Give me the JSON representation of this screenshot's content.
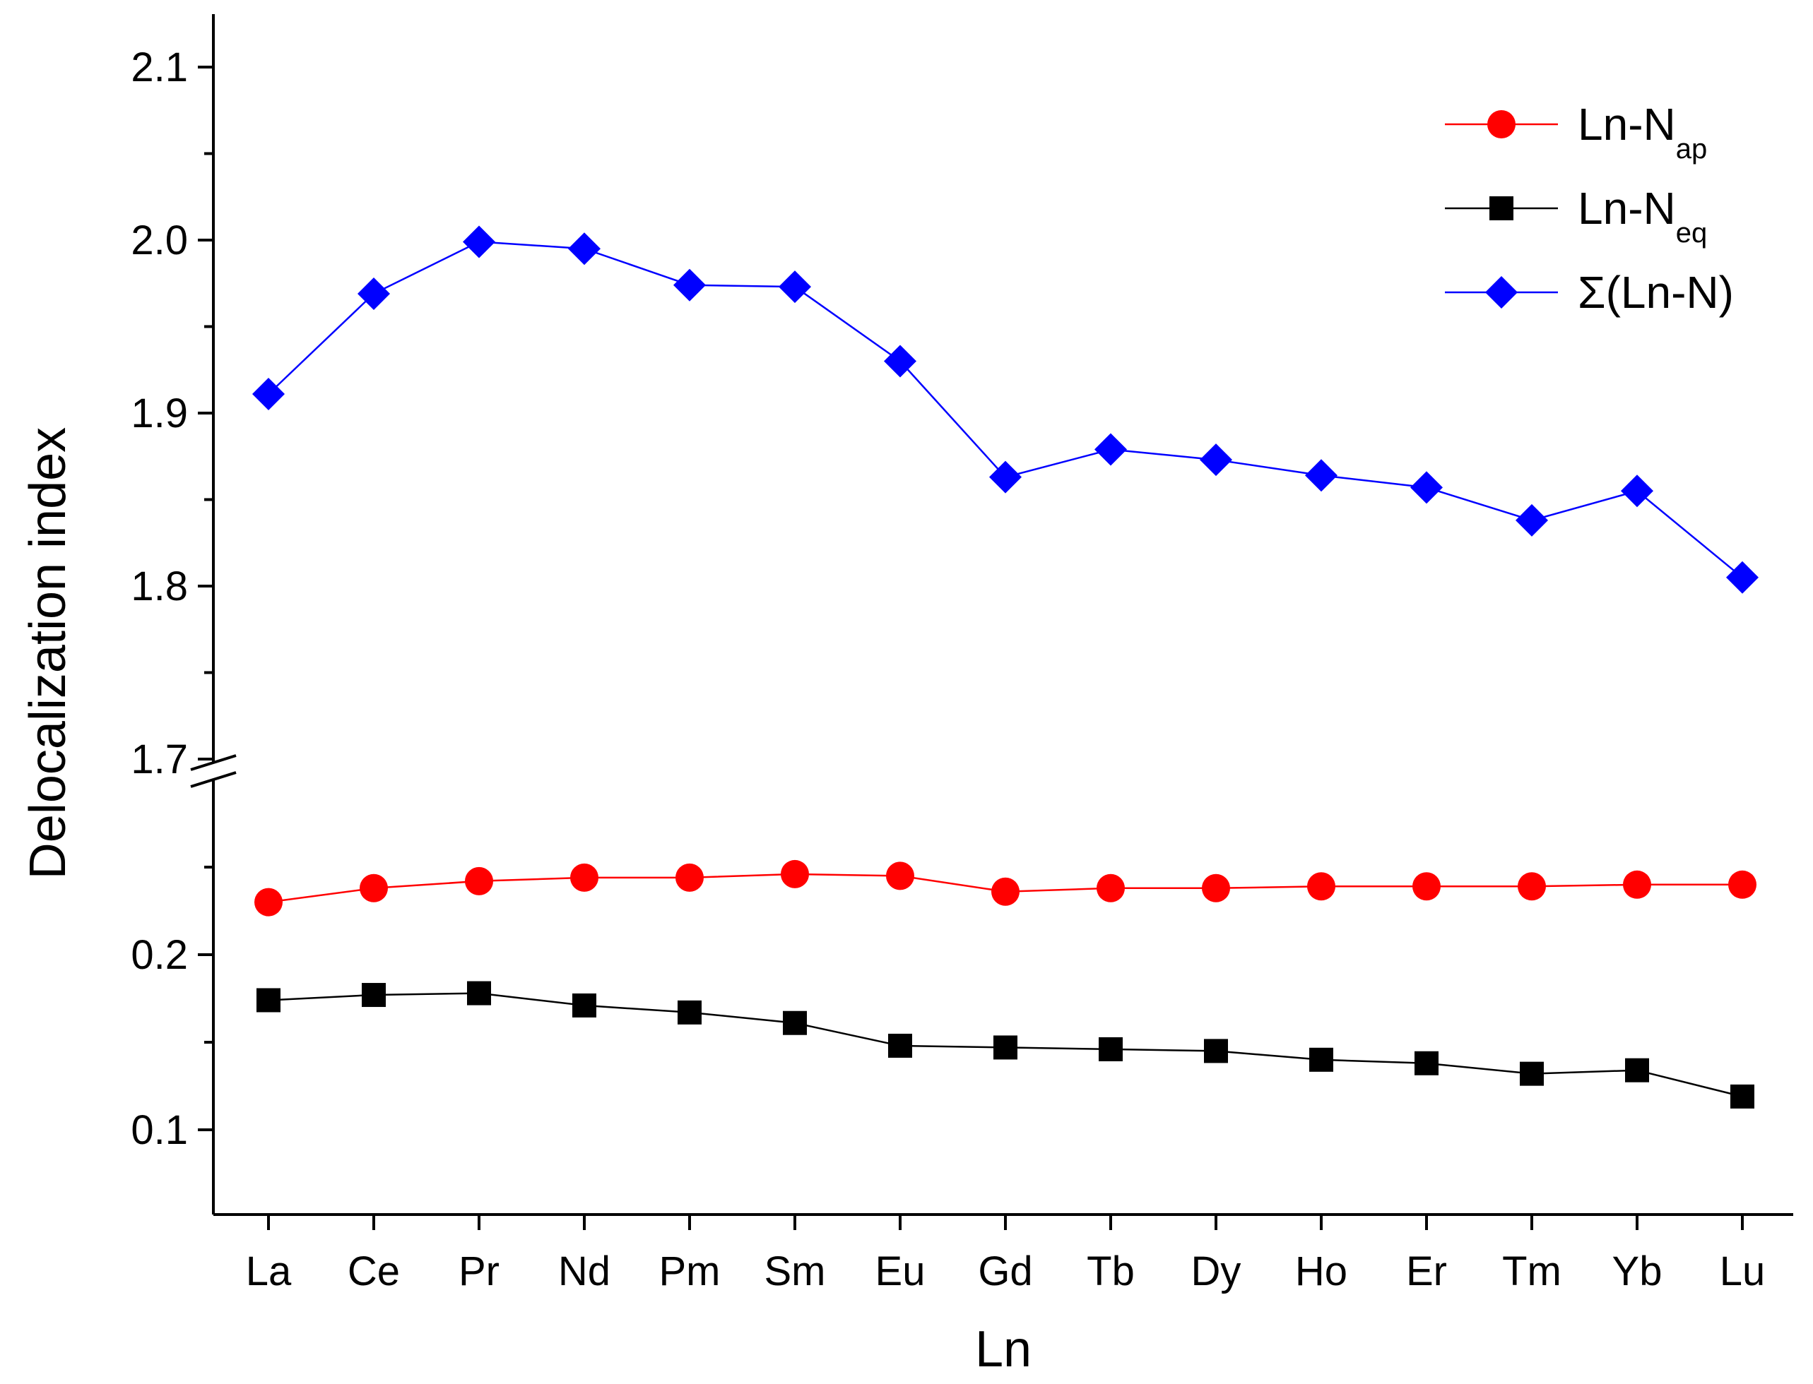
{
  "chart_data": {
    "type": "line",
    "title": "",
    "xlabel": "Ln",
    "ylabel": "Delocalization index",
    "categories": [
      "La",
      "Ce",
      "Pr",
      "Nd",
      "Pm",
      "Sm",
      "Eu",
      "Gd",
      "Tb",
      "Dy",
      "Ho",
      "Er",
      "Tm",
      "Yb",
      "Lu"
    ],
    "axis_break": "between 0.25 and 1.7",
    "y_upper": {
      "ylim": [
        1.675,
        2.13
      ],
      "ticks": [
        "1.7",
        "1.8",
        "1.9",
        "2.0",
        "2.1"
      ]
    },
    "y_lower": {
      "ylim": [
        0.05,
        0.3
      ],
      "ticks": [
        "0.1",
        "0.2"
      ]
    },
    "legend_position": "top-right",
    "series": [
      {
        "name": "Ln-N",
        "subscript": "ap",
        "color": "#ff0000",
        "marker": "circle",
        "values": [
          0.23,
          0.238,
          0.242,
          0.244,
          0.244,
          0.246,
          0.245,
          0.236,
          0.238,
          0.238,
          0.239,
          0.239,
          0.239,
          0.24,
          0.24
        ]
      },
      {
        "name": "Ln-N",
        "subscript": "eq",
        "color": "#000000",
        "marker": "square",
        "values": [
          0.174,
          0.177,
          0.178,
          0.171,
          0.167,
          0.161,
          0.148,
          0.147,
          0.146,
          0.145,
          0.14,
          0.138,
          0.132,
          0.134,
          0.119
        ]
      },
      {
        "name": "Σ(Ln-N)",
        "subscript": "",
        "color": "#0000ff",
        "marker": "diamond",
        "values": [
          1.911,
          1.969,
          1.999,
          1.995,
          1.974,
          1.973,
          1.93,
          1.863,
          1.879,
          1.873,
          1.864,
          1.857,
          1.838,
          1.855,
          1.805
        ]
      }
    ]
  }
}
